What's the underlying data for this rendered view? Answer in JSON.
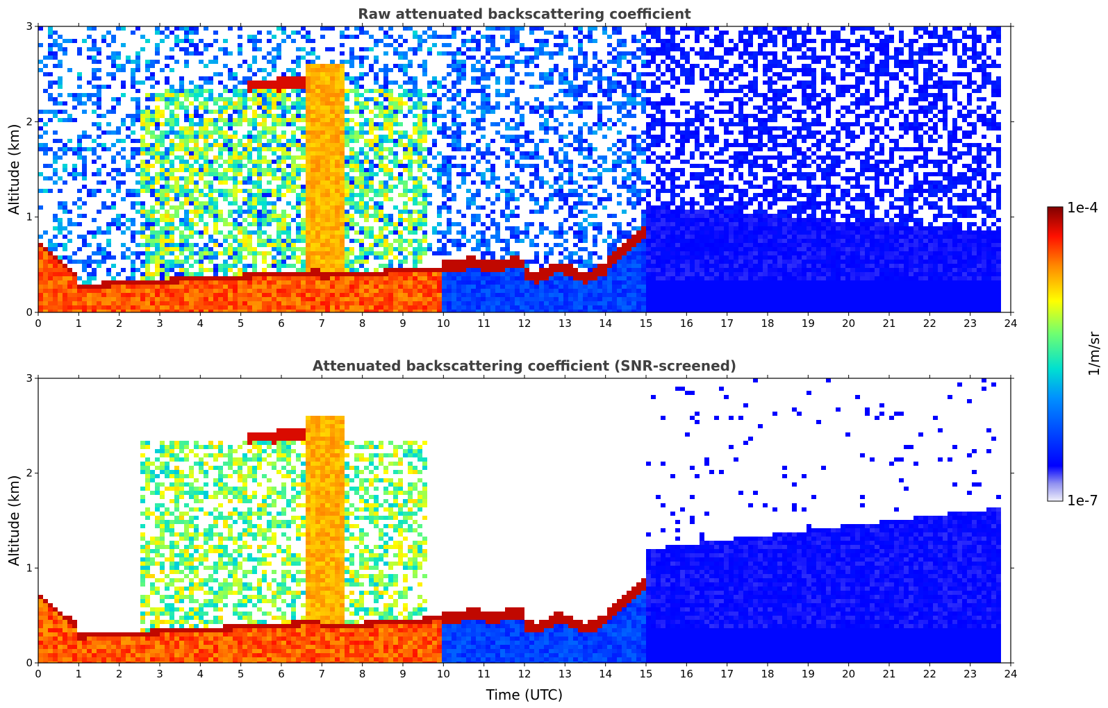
{
  "chart_data": [
    {
      "type": "heatmap",
      "title": "Raw attenuated backscattering coefficient",
      "xlabel": "",
      "ylabel": "Altitude (km)",
      "xlim": [
        0,
        24
      ],
      "ylim": [
        0,
        3
      ],
      "xticks": [
        "0",
        "1",
        "2",
        "3",
        "4",
        "5",
        "6",
        "7",
        "8",
        "9",
        "10",
        "11",
        "12",
        "13",
        "14",
        "15",
        "16",
        "17",
        "18",
        "19",
        "20",
        "21",
        "22",
        "23",
        "24"
      ],
      "yticks": [
        "0",
        "1",
        "2",
        "3"
      ],
      "screened": false
    },
    {
      "type": "heatmap",
      "title": "Attenuated backscattering coefficient (SNR-screened)",
      "xlabel": "Time (UTC)",
      "ylabel": "Altitude (km)",
      "xlim": [
        0,
        24
      ],
      "ylim": [
        0,
        3
      ],
      "xticks": [
        "0",
        "1",
        "2",
        "3",
        "4",
        "5",
        "6",
        "7",
        "8",
        "9",
        "10",
        "11",
        "12",
        "13",
        "14",
        "15",
        "16",
        "17",
        "18",
        "19",
        "20",
        "21",
        "22",
        "23",
        "24"
      ],
      "yticks": [
        "0",
        "1",
        "2",
        "3"
      ],
      "screened": true
    }
  ],
  "colorbar": {
    "label": "1/m/sr",
    "max_label": "1e-4",
    "min_label": "1e-7",
    "scale": "log",
    "range": [
      1e-07,
      0.0001
    ],
    "colormap": [
      "#f0f0fa",
      "#0000ff",
      "#00aaff",
      "#00e0d0",
      "#60ff60",
      "#ffff00",
      "#ff8800",
      "#ff0000",
      "#800000"
    ]
  }
}
